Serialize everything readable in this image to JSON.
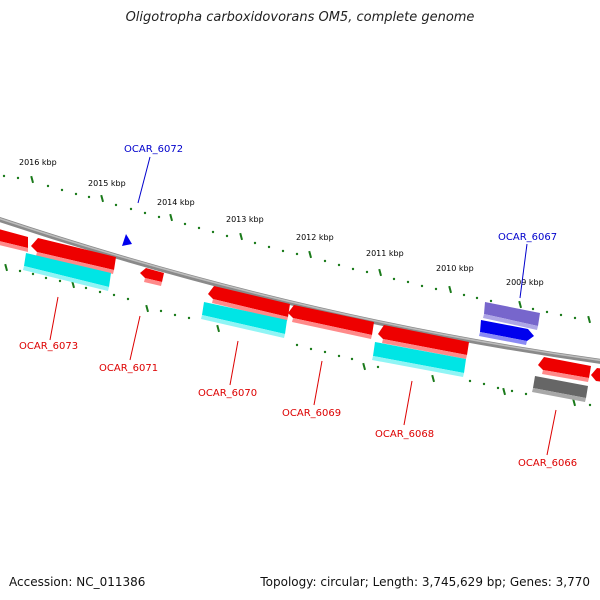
{
  "title": "Oligotropha carboxidovorans OM5, complete genome",
  "footer": {
    "accession": "Accession: NC_011386",
    "summary": "Topology: circular; Length: 3,745,629 bp; Genes: 3,770"
  },
  "scale_labels": [
    "2016 kbp",
    "2015 kbp",
    "2014 kbp",
    "2013 kbp",
    "2012 kbp",
    "2011 kbp",
    "2010 kbp",
    "2009 kbp"
  ],
  "gene_labels": {
    "OCAR_6072": "OCAR_6072",
    "OCAR_6067": "OCAR_6067",
    "OCAR_6073": "OCAR_6073",
    "OCAR_6071": "OCAR_6071",
    "OCAR_6070": "OCAR_6070",
    "OCAR_6069": "OCAR_6069",
    "OCAR_6068": "OCAR_6068",
    "OCAR_6066": "OCAR_6066"
  },
  "colors": {
    "forward_label": "#0000cc",
    "reverse_label": "#dd0000",
    "cds": "#ee0000",
    "cyan": "#00e5e5",
    "blue": "#0000ee",
    "purple": "#7766cc",
    "grey": "#666666",
    "tick": "#1a7a1a",
    "backbone": "#888888"
  }
}
